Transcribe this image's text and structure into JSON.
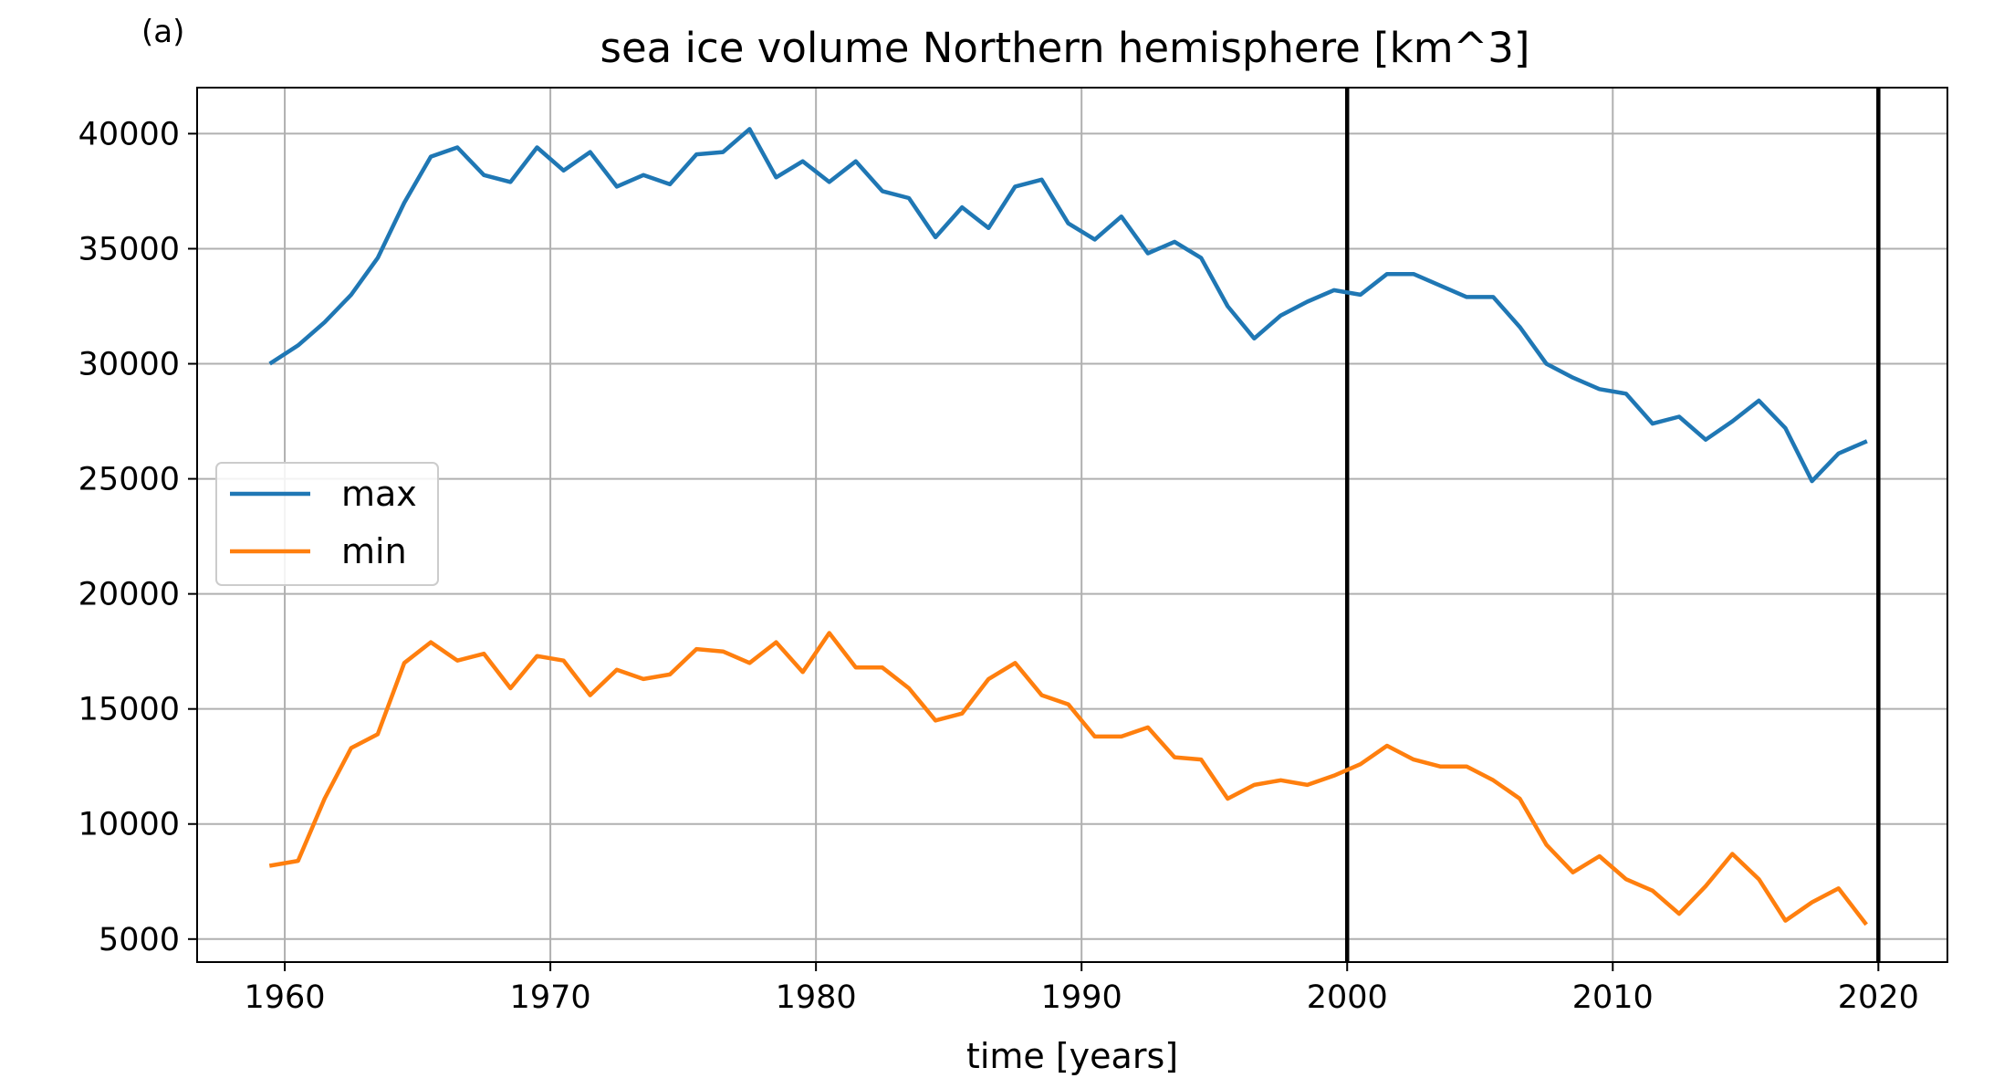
{
  "panel_label": "(a)",
  "chart_data": {
    "type": "line",
    "title": "sea ice volume Northern hemisphere [km^3]",
    "xlabel": "time [years]",
    "ylabel": "",
    "xlim": [
      1956.7,
      2022.6
    ],
    "ylim": [
      4000,
      42000
    ],
    "xticks": [
      1960,
      1970,
      1980,
      1990,
      2000,
      2010,
      2020
    ],
    "yticks": [
      5000,
      10000,
      15000,
      20000,
      25000,
      30000,
      35000,
      40000
    ],
    "grid": true,
    "legend_position": "center-left",
    "vertical_lines": [
      2000,
      2020
    ],
    "x": [
      1959.5,
      1960.5,
      1961.5,
      1962.5,
      1963.5,
      1964.5,
      1965.5,
      1966.5,
      1967.5,
      1968.5,
      1969.5,
      1970.5,
      1971.5,
      1972.5,
      1973.5,
      1974.5,
      1975.5,
      1976.5,
      1977.5,
      1978.5,
      1979.5,
      1980.5,
      1981.5,
      1982.5,
      1983.5,
      1984.5,
      1985.5,
      1986.5,
      1987.5,
      1988.5,
      1989.5,
      1990.5,
      1991.5,
      1992.5,
      1993.5,
      1994.5,
      1995.5,
      1996.5,
      1997.5,
      1998.5,
      1999.5,
      2000.5,
      2001.5,
      2002.5,
      2003.5,
      2004.5,
      2005.5,
      2006.5,
      2007.5,
      2008.5,
      2009.5,
      2010.5,
      2011.5,
      2012.5,
      2013.5,
      2014.5,
      2015.5,
      2016.5,
      2017.5,
      2018.5,
      2019.5
    ],
    "series": [
      {
        "name": "max",
        "color": "#1f77b4",
        "values": [
          30050,
          30800,
          31800,
          33000,
          34600,
          37000,
          39000,
          39400,
          38200,
          37900,
          39400,
          38400,
          39200,
          37700,
          38200,
          37800,
          39100,
          39200,
          40200,
          38100,
          38800,
          37900,
          38800,
          37500,
          37200,
          35500,
          36800,
          35900,
          37700,
          38000,
          36100,
          35400,
          36400,
          34800,
          35300,
          34600,
          32500,
          31100,
          32100,
          32700,
          33200,
          33000,
          33900,
          33900,
          33400,
          32900,
          32900,
          31600,
          30000,
          29400,
          28900,
          28700,
          27400,
          27700,
          26700,
          27500,
          28400,
          27200,
          24900,
          26100,
          26600
        ]
      },
      {
        "name": "min",
        "color": "#ff7f0e",
        "values": [
          8200,
          8400,
          11100,
          13300,
          13900,
          17000,
          17900,
          17100,
          17400,
          15900,
          17300,
          17100,
          15600,
          16700,
          16300,
          16500,
          17600,
          17500,
          17000,
          17900,
          16600,
          18300,
          16800,
          16800,
          15900,
          14500,
          14800,
          16300,
          17000,
          15600,
          15200,
          13800,
          13800,
          14200,
          12900,
          12800,
          11100,
          11700,
          11900,
          11700,
          12100,
          12600,
          13400,
          12800,
          12500,
          12500,
          11900,
          11100,
          9100,
          7900,
          8600,
          7600,
          7100,
          6100,
          7300,
          8700,
          7600,
          5800,
          6600,
          7200,
          5700
        ]
      }
    ]
  }
}
